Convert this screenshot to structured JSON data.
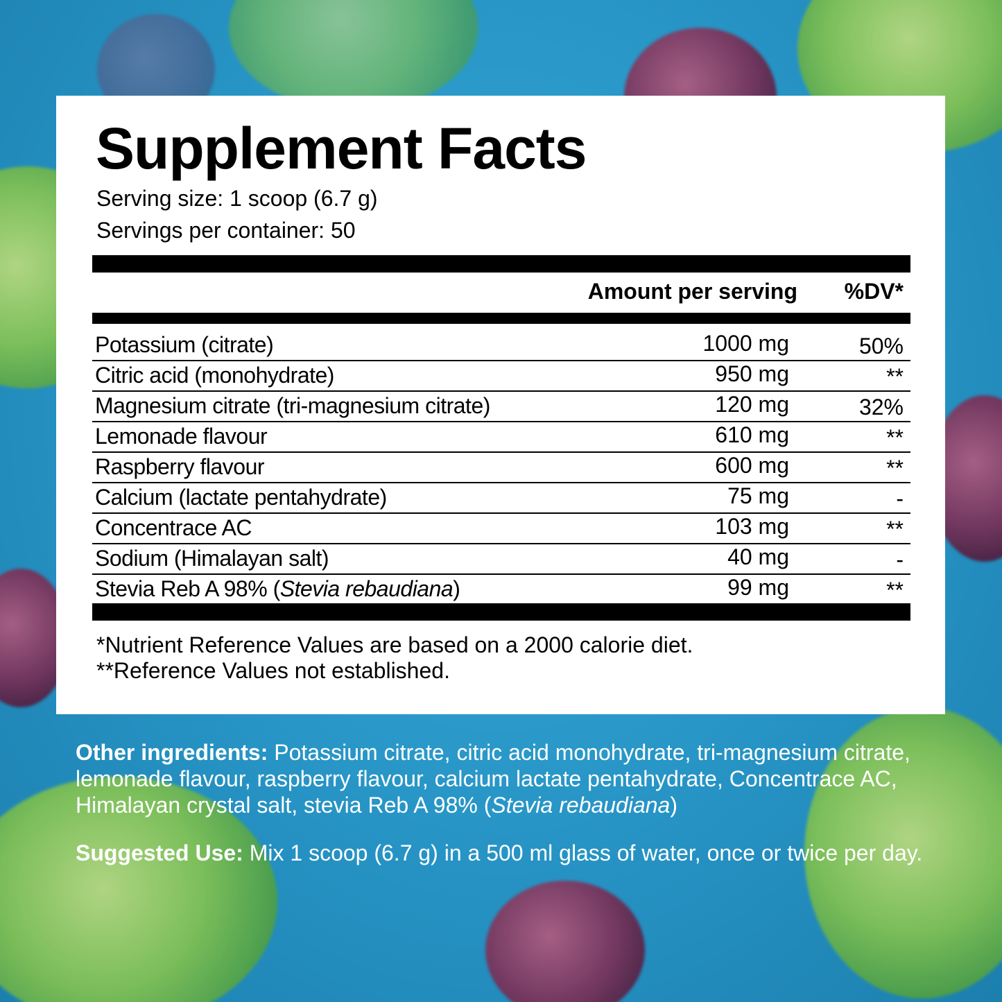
{
  "label": {
    "title": "Supplement Facts",
    "serving_size": "Serving size: 1 scoop (6.7 g)",
    "servings_per_container": "Servings per container: 50"
  },
  "table": {
    "header": [
      "Amount per serving",
      "%DV*"
    ],
    "rows": [
      {
        "name": "Potassium (citrate)",
        "amount": "1000 mg",
        "dv": "50%"
      },
      {
        "name": "Citric acid (monohydrate)",
        "amount": "950 mg",
        "dv": "**"
      },
      {
        "name": "Magnesium citrate (tri-magnesium citrate)",
        "amount": "120 mg",
        "dv": "32%"
      },
      {
        "name": "Lemonade flavour",
        "amount": "610 mg",
        "dv": "**"
      },
      {
        "name": "Raspberry flavour",
        "amount": "600 mg",
        "dv": "**"
      },
      {
        "name": "Calcium (lactate pentahydrate)",
        "amount": "75 mg",
        "dv": "-"
      },
      {
        "name": "Concentrace AC",
        "amount": "103 mg",
        "dv": "**"
      },
      {
        "name": "Sodium (Himalayan salt)",
        "amount": "40 mg",
        "dv": "-"
      },
      {
        "name": [
          {
            "text": "Stevia Reb A 98% ("
          },
          {
            "text": "Stevia rebaudiana",
            "italic": true
          },
          {
            "text": ")"
          }
        ],
        "amount": "99 mg",
        "dv": "**"
      }
    ]
  },
  "footnotes": [
    "*Nutrient Reference Values are based on a 2000 calorie diet.",
    "**Reference Values not established."
  ],
  "other_ingredients": {
    "label": "Other ingredients:",
    "text": [
      {
        "text": " Potassium citrate, citric acid monohydrate, tri-magnesium citrate, lemonade flavour, raspberry flavour, calcium lactate pentahydrate, Concentrace AC, Himalayan crystal salt, stevia Reb A 98% ("
      },
      {
        "text": "Stevia rebaudiana",
        "italic": true
      },
      {
        "text": ")"
      }
    ]
  },
  "suggested_use": {
    "label": "Suggested Use:",
    "text": " Mix 1 scoop (6.7 g) in a 500 ml glass of water, once or twice per day."
  }
}
